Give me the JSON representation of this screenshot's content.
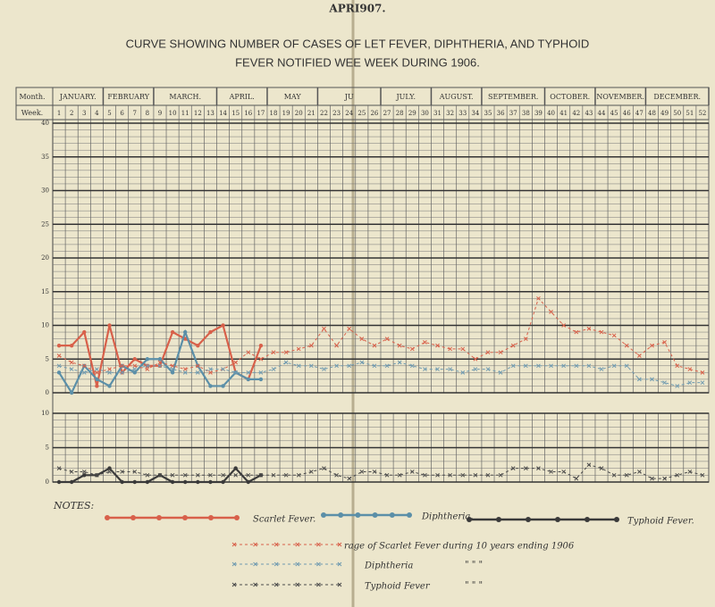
{
  "header": "APRI907.",
  "title_lines": [
    "CURVE SHOWING NUMBER OF CASES OF LET FEVER, DIPHTHERIA, AND TYPHOID",
    "FEVER NOTIFIED WEE WEEK DURING 1906."
  ],
  "month_label": "Month.",
  "week_label": "Week.",
  "months": [
    {
      "name": "JANUARY.",
      "start": 1,
      "end": 4
    },
    {
      "name": "FEBRUARY",
      "start": 5,
      "end": 8
    },
    {
      "name": "MARCH.",
      "start": 9,
      "end": 13
    },
    {
      "name": "APRIL.",
      "start": 14,
      "end": 17
    },
    {
      "name": "MAY",
      "start": 18,
      "end": 21
    },
    {
      "name": "JU",
      "start": 22,
      "end": 26
    },
    {
      "name": "JULY.",
      "start": 27,
      "end": 30
    },
    {
      "name": "AUGUST.",
      "start": 31,
      "end": 34
    },
    {
      "name": "SEPTEMBER.",
      "start": 35,
      "end": 39
    },
    {
      "name": "OCTOBER.",
      "start": 40,
      "end": 43
    },
    {
      "name": "NOVEMBER.",
      "start": 44,
      "end": 47
    },
    {
      "name": "DECEMBER.",
      "start": 48,
      "end": 52
    }
  ],
  "notes_label": "NOTES:",
  "chart_data": [
    {
      "type": "line",
      "categories": [
        1,
        2,
        3,
        4,
        5,
        6,
        7,
        8,
        9,
        10,
        11,
        12,
        13,
        14,
        15,
        16,
        17,
        18,
        19,
        20,
        21,
        22,
        23,
        24,
        25,
        26,
        27,
        28,
        29,
        30,
        31,
        32,
        33,
        34,
        35,
        36,
        37,
        38,
        39,
        40,
        41,
        42,
        43,
        44,
        45,
        46,
        47,
        48,
        49,
        50,
        51,
        52
      ],
      "ylim": [
        0,
        40
      ],
      "yticks": [
        0,
        5,
        10,
        15,
        20,
        25,
        30,
        35,
        40
      ],
      "grid": true,
      "series": [
        {
          "name": "Scarlet Fever.",
          "color": "#d8604a",
          "style": "solid",
          "values": [
            7,
            7,
            9,
            1,
            10,
            3,
            5,
            4,
            4,
            9,
            8,
            7,
            9,
            10,
            3,
            2,
            7,
            null,
            null,
            null,
            null,
            null,
            null,
            null,
            null,
            null,
            null,
            null,
            null,
            null,
            null,
            null,
            null,
            null,
            null,
            null,
            null,
            null,
            null,
            null,
            null,
            null,
            null,
            null,
            null,
            null,
            null,
            null,
            null,
            null,
            null,
            null
          ]
        },
        {
          "name": "Diphtheria.",
          "color": "#5b8fa8",
          "style": "solid",
          "values": [
            3,
            0,
            4,
            2,
            1,
            4,
            3,
            5,
            5,
            3,
            9,
            4,
            1,
            1,
            3,
            2,
            2,
            null,
            null,
            null,
            null,
            null,
            null,
            null,
            null,
            null,
            null,
            null,
            null,
            null,
            null,
            null,
            null,
            null,
            null,
            null,
            null,
            null,
            null,
            null,
            null,
            null,
            null,
            null,
            null,
            null,
            null,
            null,
            null,
            null,
            null,
            null
          ]
        },
        {
          "name": "rage of Scarlet Fever during 10 years ending 1906",
          "color": "#d8604a",
          "style": "dashed",
          "values": [
            5.5,
            4.5,
            4,
            3,
            3.5,
            4,
            4,
            3.5,
            4.5,
            4,
            3.5,
            4,
            3,
            3.5,
            4.5,
            6,
            5,
            6,
            6,
            6.5,
            7,
            9.5,
            7,
            9.5,
            8,
            7,
            8,
            7,
            6.5,
            7.5,
            7,
            6.5,
            6.5,
            5,
            6,
            6,
            7,
            8,
            14,
            12,
            10,
            9,
            9.5,
            9,
            8.5,
            7,
            5.5,
            7,
            7.5,
            4,
            3.5,
            3
          ]
        },
        {
          "name": "Diphtheria",
          "color": "#6f9ab0",
          "style": "dashed",
          "values": [
            4,
            3.5,
            3,
            3.5,
            3,
            3,
            3.5,
            4,
            4,
            3.5,
            3,
            3,
            3.5,
            3.5,
            3,
            3,
            3,
            3.5,
            4.5,
            4,
            4,
            3.5,
            4,
            4,
            4.5,
            4,
            4,
            4.5,
            4,
            3.5,
            3.5,
            3.5,
            3,
            3.5,
            3.5,
            3,
            4,
            4,
            4,
            4,
            4,
            4,
            4,
            3.5,
            4,
            4,
            2,
            2,
            1.5,
            1,
            1.5,
            1.5
          ]
        }
      ]
    },
    {
      "type": "line",
      "categories": [
        1,
        2,
        3,
        4,
        5,
        6,
        7,
        8,
        9,
        10,
        11,
        12,
        13,
        14,
        15,
        16,
        17,
        18,
        19,
        20,
        21,
        22,
        23,
        24,
        25,
        26,
        27,
        28,
        29,
        30,
        31,
        32,
        33,
        34,
        35,
        36,
        37,
        38,
        39,
        40,
        41,
        42,
        43,
        44,
        45,
        46,
        47,
        48,
        49,
        50,
        51,
        52
      ],
      "ylim": [
        0,
        10
      ],
      "yticks": [
        0,
        5,
        10
      ],
      "grid": true,
      "series": [
        {
          "name": "Typhoid Fever.",
          "color": "#3a3a3a",
          "style": "solid",
          "values": [
            0,
            0,
            1,
            1,
            2,
            0,
            0,
            0,
            1,
            0,
            0,
            0,
            0,
            0,
            2,
            0,
            1,
            null,
            null,
            null,
            null,
            null,
            null,
            null,
            null,
            null,
            null,
            null,
            null,
            null,
            null,
            null,
            null,
            null,
            null,
            null,
            null,
            null,
            null,
            null,
            null,
            null,
            null,
            null,
            null,
            null,
            null,
            null,
            null,
            null,
            null,
            null
          ]
        },
        {
          "name": "Typhoid Fever",
          "color": "#4a4a4a",
          "style": "dashed",
          "values": [
            2,
            1.5,
            1.5,
            1,
            1.5,
            1.5,
            1.5,
            1,
            1,
            1,
            1,
            1,
            1,
            1,
            1,
            1,
            1,
            1,
            1,
            1,
            1.5,
            2,
            1,
            0.5,
            1.5,
            1.5,
            1,
            1,
            1.5,
            1,
            1,
            1,
            1,
            1,
            1,
            1,
            2,
            2,
            2,
            1.5,
            1.5,
            0.5,
            2.5,
            2,
            1,
            1,
            1.5,
            0.5,
            0.5,
            1,
            1.5,
            1
          ]
        }
      ]
    }
  ]
}
